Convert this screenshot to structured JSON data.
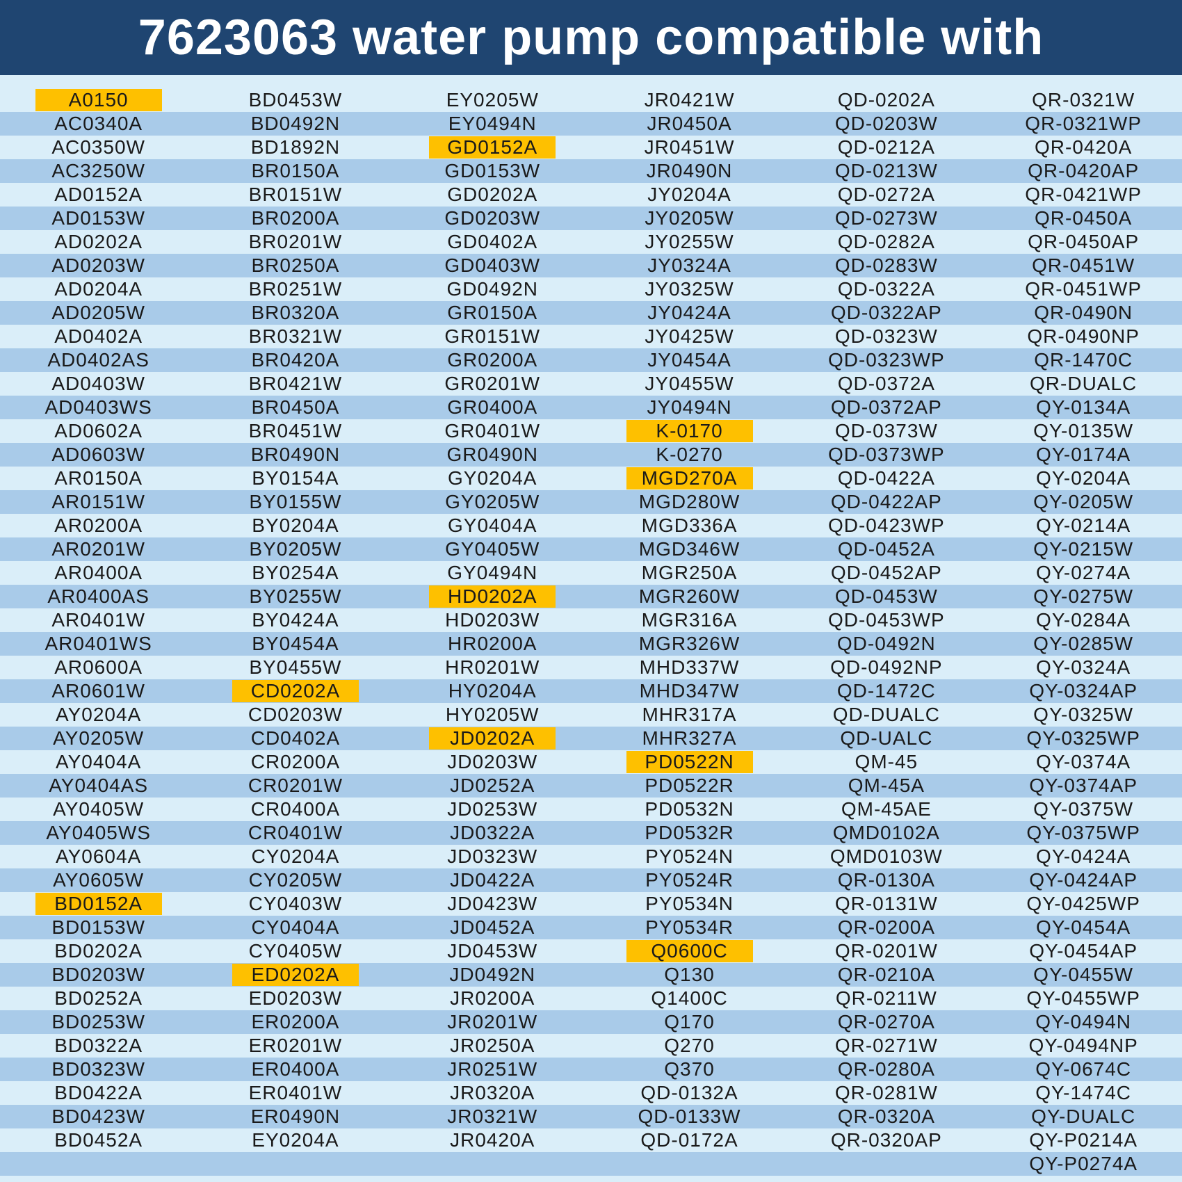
{
  "title": "7623063 water pump compatible with",
  "colors": {
    "header_bg": "#1f4571",
    "stripe_light": "#daeef9",
    "stripe_dark": "#a9cbe9",
    "highlight": "#fec000",
    "text": "#1a1a1a"
  },
  "highlighted": [
    "A0150",
    "BD0152A",
    "CD0202A",
    "ED0202A",
    "GD0152A",
    "HD0202A",
    "JD0202A",
    "K-0170",
    "MGD270A",
    "PD0522N",
    "Q0600C"
  ],
  "columns": [
    [
      "A0150",
      "AC0340A",
      "AC0350W",
      "AC3250W",
      "AD0152A",
      "AD0153W",
      "AD0202A",
      "AD0203W",
      "AD0204A",
      "AD0205W",
      "AD0402A",
      "AD0402AS",
      "AD0403W",
      "AD0403WS",
      "AD0602A",
      "AD0603W",
      "AR0150A",
      "AR0151W",
      "AR0200A",
      "AR0201W",
      "AR0400A",
      "AR0400AS",
      "AR0401W",
      "AR0401WS",
      "AR0600A",
      "AR0601W",
      "AY0204A",
      "AY0205W",
      "AY0404A",
      "AY0404AS",
      "AY0405W",
      "AY0405WS",
      "AY0604A",
      "AY0605W",
      "BD0152A",
      "BD0153W",
      "BD0202A",
      "BD0203W",
      "BD0252A",
      "BD0253W",
      "BD0322A",
      "BD0323W",
      "BD0422A",
      "BD0423W",
      "BD0452A"
    ],
    [
      "BD0453W",
      "BD0492N",
      "BD1892N",
      "BR0150A",
      "BR0151W",
      "BR0200A",
      "BR0201W",
      "BR0250A",
      "BR0251W",
      "BR0320A",
      "BR0321W",
      "BR0420A",
      "BR0421W",
      "BR0450A",
      "BR0451W",
      "BR0490N",
      "BY0154A",
      "BY0155W",
      "BY0204A",
      "BY0205W",
      "BY0254A",
      "BY0255W",
      "BY0424A",
      "BY0454A",
      "BY0455W",
      "CD0202A",
      "CD0203W",
      "CD0402A",
      "CR0200A",
      "CR0201W",
      "CR0400A",
      "CR0401W",
      "CY0204A",
      "CY0205W",
      "CY0403W",
      "CY0404A",
      "CY0405W",
      "ED0202A",
      "ED0203W",
      "ER0200A",
      "ER0201W",
      "ER0400A",
      "ER0401W",
      "ER0490N",
      "EY0204A"
    ],
    [
      "EY0205W",
      "EY0494N",
      "GD0152A",
      "GD0153W",
      "GD0202A",
      "GD0203W",
      "GD0402A",
      "GD0403W",
      "GD0492N",
      "GR0150A",
      "GR0151W",
      "GR0200A",
      "GR0201W",
      "GR0400A",
      "GR0401W",
      "GR0490N",
      "GY0204A",
      "GY0205W",
      "GY0404A",
      "GY0405W",
      "GY0494N",
      "HD0202A",
      "HD0203W",
      "HR0200A",
      "HR0201W",
      "HY0204A",
      "HY0205W",
      "JD0202A",
      "JD0203W",
      "JD0252A",
      "JD0253W",
      "JD0322A",
      "JD0323W",
      "JD0422A",
      "JD0423W",
      "JD0452A",
      "JD0453W",
      "JD0492N",
      "JR0200A",
      "JR0201W",
      "JR0250A",
      "JR0251W",
      "JR0320A",
      "JR0321W",
      "JR0420A"
    ],
    [
      "JR0421W",
      "JR0450A",
      "JR0451W",
      "JR0490N",
      "JY0204A",
      "JY0205W",
      "JY0255W",
      "JY0324A",
      "JY0325W",
      "JY0424A",
      "JY0425W",
      "JY0454A",
      "JY0455W",
      "JY0494N",
      "K-0170",
      "K-0270",
      "MGD270A",
      "MGD280W",
      "MGD336A",
      "MGD346W",
      "MGR250A",
      "MGR260W",
      "MGR316A",
      "MGR326W",
      "MHD337W",
      "MHD347W",
      "MHR317A",
      "MHR327A",
      "PD0522N",
      "PD0522R",
      "PD0532N",
      "PD0532R",
      "PY0524N",
      "PY0524R",
      "PY0534N",
      "PY0534R",
      "Q0600C",
      "Q130",
      "Q1400C",
      "Q170",
      "Q270",
      "Q370",
      "QD-0132A",
      "QD-0133W",
      "QD-0172A"
    ],
    [
      "QD-0202A",
      "QD-0203W",
      "QD-0212A",
      "QD-0213W",
      "QD-0272A",
      "QD-0273W",
      "QD-0282A",
      "QD-0283W",
      "QD-0322A",
      "QD-0322AP",
      "QD-0323W",
      "QD-0323WP",
      "QD-0372A",
      "QD-0372AP",
      "QD-0373W",
      "QD-0373WP",
      "QD-0422A",
      "QD-0422AP",
      "QD-0423WP",
      "QD-0452A",
      "QD-0452AP",
      "QD-0453W",
      "QD-0453WP",
      "QD-0492N",
      "QD-0492NP",
      "QD-1472C",
      "QD-DUALC",
      "QD-UALC",
      "QM-45",
      "QM-45A",
      "QM-45AE",
      "QMD0102A",
      "QMD0103W",
      "QR-0130A",
      "QR-0131W",
      "QR-0200A",
      "QR-0201W",
      "QR-0210A",
      "QR-0211W",
      "QR-0270A",
      "QR-0271W",
      "QR-0280A",
      "QR-0281W",
      "QR-0320A",
      "QR-0320AP"
    ],
    [
      "QR-0321W",
      "QR-0321WP",
      "QR-0420A",
      "QR-0420AP",
      "QR-0421WP",
      "QR-0450A",
      "QR-0450AP",
      "QR-0451W",
      "QR-0451WP",
      "QR-0490N",
      "QR-0490NP",
      "QR-1470C",
      "QR-DUALC",
      "QY-0134A",
      "QY-0135W",
      "QY-0174A",
      "QY-0204A",
      "QY-0205W",
      "QY-0214A",
      "QY-0215W",
      "QY-0274A",
      "QY-0275W",
      "QY-0284A",
      "QY-0285W",
      "QY-0324A",
      "QY-0324AP",
      "QY-0325W",
      "QY-0325WP",
      "QY-0374A",
      "QY-0374AP",
      "QY-0375W",
      "QY-0375WP",
      "QY-0424A",
      "QY-0424AP",
      "QY-0425WP",
      "QY-0454A",
      "QY-0454AP",
      "QY-0455W",
      "QY-0455WP",
      "QY-0494N",
      "QY-0494NP",
      "QY-0674C",
      "QY-1474C",
      "QY-DUALC",
      "QY-P0214A",
      "QY-P0274A"
    ]
  ]
}
